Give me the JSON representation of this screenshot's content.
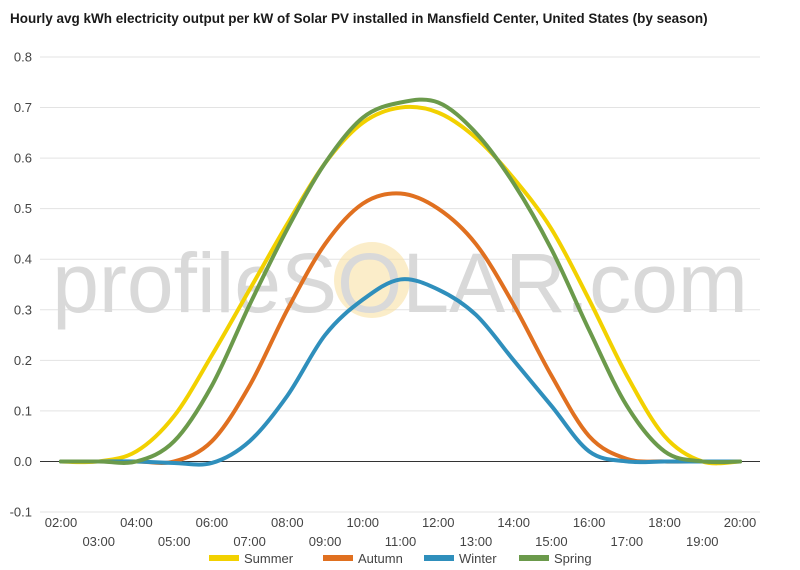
{
  "chart_data": {
    "type": "line",
    "title": "Hourly avg kWh electricity output per kW of Solar PV installed in Mansfield Center, United States (by season)",
    "watermark": "profileSOLAR.com",
    "ylim": [
      -0.1,
      0.8
    ],
    "yticks": [
      "-0.1",
      "0.0",
      "0.1",
      "0.2",
      "0.3",
      "0.4",
      "0.5",
      "0.6",
      "0.7",
      "0.8"
    ],
    "x": [
      "02:00",
      "03:00",
      "04:00",
      "05:00",
      "06:00",
      "07:00",
      "08:00",
      "09:00",
      "10:00",
      "11:00",
      "12:00",
      "13:00",
      "14:00",
      "15:00",
      "16:00",
      "17:00",
      "18:00",
      "19:00",
      "20:00"
    ],
    "legend_position": "bottom",
    "grid": true,
    "series": [
      {
        "name": "Summer",
        "color": "#f2d100",
        "values": [
          0,
          0,
          0.02,
          0.09,
          0.21,
          0.34,
          0.47,
          0.59,
          0.67,
          0.7,
          0.69,
          0.64,
          0.56,
          0.46,
          0.32,
          0.17,
          0.05,
          0.0,
          0.0
        ]
      },
      {
        "name": "Autumn",
        "color": "#e07020",
        "values": [
          0,
          0,
          0,
          0,
          0.04,
          0.15,
          0.3,
          0.43,
          0.51,
          0.53,
          0.5,
          0.43,
          0.31,
          0.17,
          0.05,
          0.005,
          0,
          0,
          0
        ]
      },
      {
        "name": "Winter",
        "color": "#2f8fbc",
        "values": [
          0,
          0,
          0,
          -0.003,
          -0.003,
          0.04,
          0.13,
          0.25,
          0.32,
          0.36,
          0.34,
          0.29,
          0.2,
          0.11,
          0.02,
          0,
          0,
          0,
          0
        ]
      },
      {
        "name": "Spring",
        "color": "#6b9a4b",
        "values": [
          0,
          0,
          0,
          0.04,
          0.15,
          0.31,
          0.46,
          0.59,
          0.68,
          0.71,
          0.71,
          0.65,
          0.55,
          0.42,
          0.26,
          0.11,
          0.02,
          0,
          0
        ]
      }
    ]
  }
}
